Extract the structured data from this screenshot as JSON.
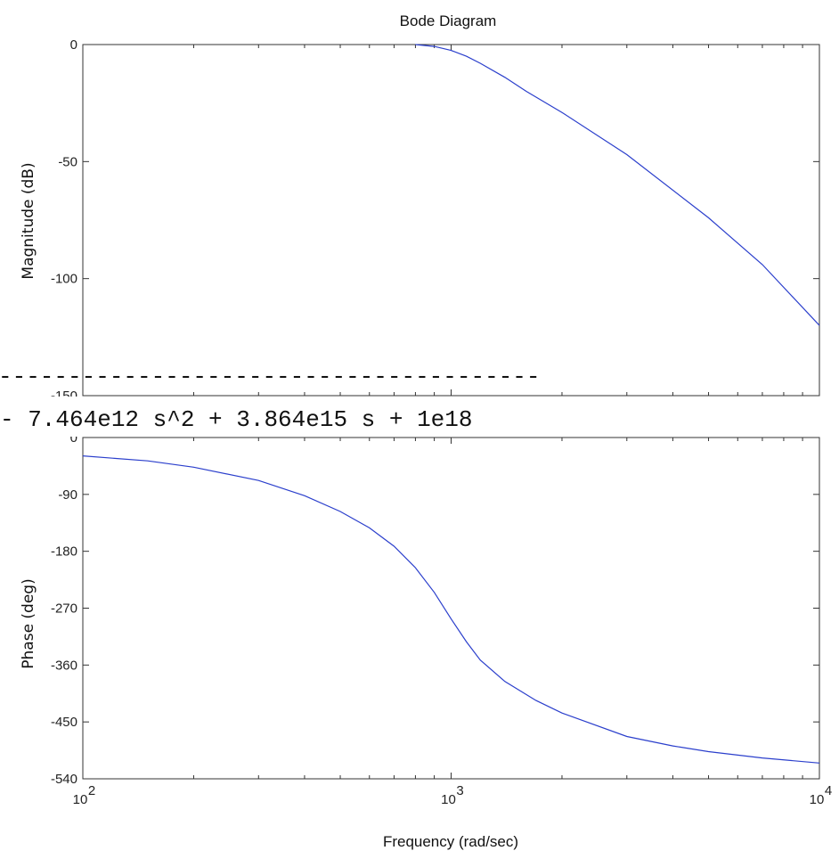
{
  "overlay": {
    "dash_text": "---------------------------------------",
    "equation_text": "- 7.464e12 s^2 + 3.864e15 s + 1e18"
  },
  "chart_data": [
    {
      "type": "line",
      "title": "Bode Diagram",
      "xlabel": "",
      "ylabel": "Magnitude (dB)",
      "xscale": "log",
      "xlim": [
        100,
        10000
      ],
      "ylim": [
        -150,
        0
      ],
      "yticks": [
        0,
        -50,
        -100,
        -150
      ],
      "line_color": "#2b3fcc",
      "series": [
        {
          "x": [
            800,
            900,
            1000,
            1100,
            1200,
            1400,
            1600,
            2000,
            3000,
            5000,
            7000,
            10000
          ],
          "y": [
            0,
            -0.8,
            -2.5,
            -5,
            -8,
            -14,
            -20,
            -29,
            -47,
            -74,
            -94,
            -120
          ]
        }
      ]
    },
    {
      "type": "line",
      "title": "",
      "xlabel": "Frequency (rad/sec)",
      "ylabel": "Phase (deg)",
      "xscale": "log",
      "xlim": [
        100,
        10000
      ],
      "ylim": [
        -540,
        0
      ],
      "yticks": [
        0,
        -90,
        -180,
        -270,
        -360,
        -450,
        -540
      ],
      "xticks": [
        100,
        1000,
        10000
      ],
      "xtick_labels": [
        {
          "base": "10",
          "exp": "2"
        },
        {
          "base": "10",
          "exp": "3"
        },
        {
          "base": "10",
          "exp": "4"
        }
      ],
      "line_color": "#2b3fcc",
      "series": [
        {
          "x": [
            100,
            150,
            200,
            300,
            400,
            500,
            600,
            700,
            800,
            900,
            1000,
            1100,
            1200,
            1400,
            1700,
            2000,
            3000,
            4000,
            5000,
            7000,
            10000
          ],
          "y": [
            -29,
            -37,
            -47,
            -68,
            -92,
            -117,
            -143,
            -172,
            -206,
            -245,
            -287,
            -323,
            -352,
            -386,
            -416,
            -436,
            -473,
            -488,
            -497,
            -507,
            -515
          ]
        }
      ]
    }
  ]
}
